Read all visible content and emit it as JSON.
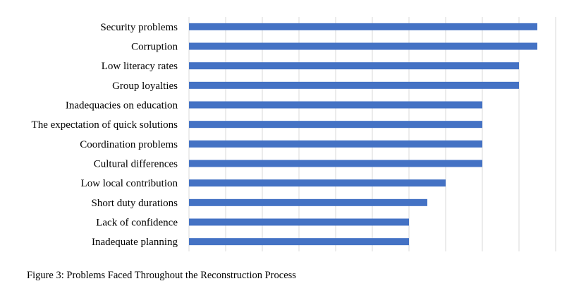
{
  "chart_data": {
    "type": "bar",
    "orientation": "horizontal",
    "categories": [
      "Security problems",
      "Corruption",
      "Low literacy rates",
      "Group loyalties",
      "Inadequacies on education",
      "The expectation of quick solutions",
      "Coordination problems",
      "Cultural differences",
      "Low local contribution",
      "Short duty durations",
      "Lack of confidence",
      "Inadequate planning"
    ],
    "values": [
      19,
      19,
      18,
      18,
      16,
      16,
      16,
      16,
      14,
      13,
      12,
      12
    ],
    "xlim": [
      0,
      20
    ],
    "x_tick_step": 2,
    "vertical_grid": true,
    "x_tick_labels_shown": false,
    "bar_color": "#4472c4",
    "grid_color": "#d9d9d9"
  },
  "caption": "Figure 3: Problems Faced Throughout the Reconstruction Process"
}
